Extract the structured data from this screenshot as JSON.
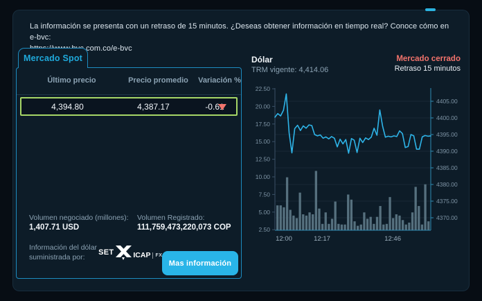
{
  "notice": {
    "line1": "La información se presenta con un retraso de 15 minutos. ¿Deseas obtener información en tiempo real? Conoce cómo en e-bvc:",
    "line2": "https://www.bvc.com.co/e-bvc"
  },
  "spot": {
    "tab_label": "Mercado Spot",
    "table": {
      "headers": [
        "Último precio",
        "Precio promedio",
        "Variación %"
      ],
      "row": {
        "ultimo": "4,394.80",
        "promedio": "4,387.17",
        "variacion": "-0.61",
        "direction": "down"
      }
    },
    "volume_negotiated": {
      "label": "Volumen negociado (millones):",
      "value": "1,407.71 USD"
    },
    "volume_registered": {
      "label": "Volumen Registrado:",
      "value": "111,759,473,220,073 COP"
    },
    "provider": {
      "label_line1": "Información del dólar",
      "label_line2": "suministrada por:",
      "logo": {
        "set": "SET",
        "icap": "ICAP",
        "fx": "FX"
      }
    },
    "more_button_label": "Mas información"
  },
  "market": {
    "title": "Dólar",
    "trm_label": "TRM vigente: 4,414.06",
    "status": "Mercado cerrado",
    "delay": "Retraso 15 minutos"
  },
  "colors": {
    "accent_cyan": "#1fa9db",
    "negative_red": "#f2736c",
    "row_highlight_green": "#a6d667",
    "button_cyan": "#29b5e8",
    "panel_bg": "#0d1c28"
  },
  "chart_data": {
    "type": "line+bar",
    "description": "Intraday dollar price line (right axis, COP) with traded volume bars (left axis, millions)",
    "line_color": "#2eb4e8",
    "bar_color": "#56707e",
    "grid": true,
    "legend": "none",
    "price_axis": {
      "side": "right",
      "ticks": [
        "4405.00",
        "4400.00",
        "4395.00",
        "4390.00",
        "4385.00",
        "4380.00",
        "4375.00",
        "4370.00"
      ],
      "min": 4367.5,
      "max": 4409
    },
    "volume_axis": {
      "side": "left",
      "ticks": [
        "22.50",
        "20.00",
        "17.50",
        "15.00",
        "12.50",
        "10.00",
        "7.50",
        "5.00",
        "2.50"
      ],
      "min": 0,
      "max": 22.5
    },
    "x_ticks": [
      {
        "label": "12:00",
        "pos": 0.058
      },
      {
        "label": "12:17",
        "pos": 0.302
      },
      {
        "label": "12:46",
        "pos": 0.756
      }
    ],
    "price_series": [
      4400.2,
      4401.3,
      4400.6,
      4402.3,
      4407.2,
      4395.5,
      4389.5,
      4396.8,
      4397.8,
      4396.2,
      4397.6,
      4396.9,
      4397.9,
      4397.7,
      4395.0,
      4394.6,
      4394.9,
      4393.9,
      4394.3,
      4393.7,
      4394.4,
      4393.9,
      4391.3,
      4393.6,
      4392.2,
      4393.5,
      4389.4,
      4393.8,
      4393.3,
      4389.6,
      4393.9,
      4392.6,
      4394.0,
      4393.5,
      4394.2,
      4396.9,
      4394.8,
      4402.4,
      4397.5,
      4394.2,
      4394.5,
      4394.3,
      4394.6,
      4394.4,
      4396.1,
      4395.3,
      4391.1,
      4391.4,
      4395.0,
      4394.6,
      4390.6,
      4390.6,
      4394.3,
      4394.7,
      4394.5,
      4394.6
    ],
    "volume_series": [
      3.9,
      3.9,
      3.6,
      8.3,
      3.2,
      2.3,
      1.9,
      5.9,
      2.5,
      2.3,
      2.8,
      2.5,
      9.3,
      3.4,
      1.0,
      2.8,
      1.0,
      1.8,
      4.5,
      1.0,
      0.9,
      0.9,
      5.6,
      4.8,
      1.4,
      0.7,
      0.9,
      2.8,
      1.8,
      2.1,
      1.0,
      2.1,
      3.8,
      0.9,
      1.0,
      5.2,
      1.9,
      2.5,
      2.3,
      1.6,
      0.9,
      1.2,
      2.8,
      6.8,
      3.8,
      0.9,
      7.2,
      1.4
    ]
  }
}
